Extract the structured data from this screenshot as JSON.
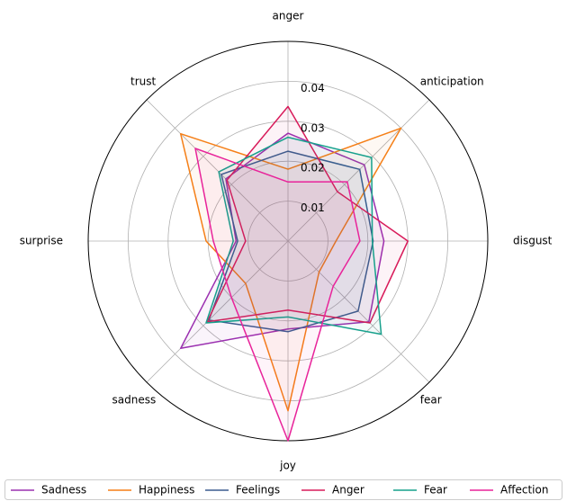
{
  "chart_data": {
    "type": "radar",
    "categories": [
      "anger",
      "anticipation",
      "disgust",
      "fear",
      "joy",
      "sadness",
      "surprise",
      "trust"
    ],
    "ylim": [
      0,
      0.05
    ],
    "yticks": [
      0.01,
      0.02,
      0.03,
      0.04
    ],
    "grid": true,
    "legend": "bottom",
    "series": [
      {
        "name": "Sadness",
        "color": "#9b30b0",
        "values": [
          0.027,
          0.027,
          0.024,
          0.0286,
          0.022,
          0.038,
          0.013,
          0.022
        ]
      },
      {
        "name": "Happiness",
        "color": "#f57f17",
        "values": [
          0.018,
          0.04,
          0.012,
          0.011,
          0.0425,
          0.015,
          0.0205,
          0.038
        ]
      },
      {
        "name": "Feelings",
        "color": "#3b5b8f",
        "values": [
          0.0225,
          0.0254,
          0.0213,
          0.0248,
          0.0227,
          0.028,
          0.0126,
          0.0236
        ]
      },
      {
        "name": "Anger",
        "color": "#d81b5a",
        "values": [
          0.0337,
          0.0175,
          0.03,
          0.029,
          0.0173,
          0.0286,
          0.0106,
          0.0216
        ]
      },
      {
        "name": "Fear",
        "color": "#17a08c",
        "values": [
          0.026,
          0.0296,
          0.0211,
          0.033,
          0.019,
          0.029,
          0.0137,
          0.0245
        ]
      },
      {
        "name": "Affection",
        "color": "#e8239a",
        "values": [
          0.0148,
          0.021,
          0.018,
          0.016,
          0.05,
          0.02,
          0.0187,
          0.0328
        ]
      }
    ]
  }
}
